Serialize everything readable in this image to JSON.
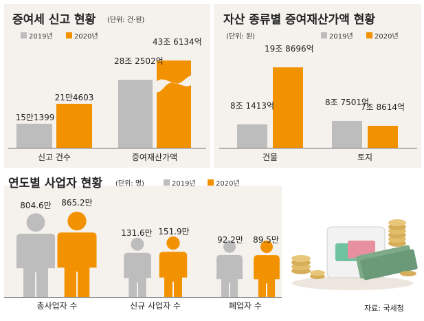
{
  "panel1": {
    "title": "증여세 신고 현황",
    "unit": "(단위: 건·원)",
    "legend": [
      "2019년",
      "2020년"
    ]
  },
  "panel2": {
    "title": "자산 종류별 증여재산가액 현황",
    "unit": "(단위: 원)",
    "legend": [
      "2019년",
      "2020년"
    ]
  },
  "panel3": {
    "title": "연도별 사업자 현황",
    "unit": "(단위: 명)",
    "legend": [
      "2019년",
      "2020년"
    ]
  },
  "source": "자료: 국세청",
  "colors": {
    "y2019": "#bdbdbd",
    "y2020": "#f39200"
  },
  "chart_data": [
    {
      "type": "bar",
      "title": "증여세 신고 현황",
      "categories": [
        "신고 건수",
        "증여재산가액"
      ],
      "series": [
        {
          "name": "2019년",
          "values": [
            151399,
            28250200000000
          ],
          "labels": [
            "15만1399",
            "28조 2502억"
          ]
        },
        {
          "name": "2020년",
          "values": [
            214603,
            43613400000000
          ],
          "labels": [
            "21만4603",
            "43조 6134억"
          ]
        }
      ],
      "axis_break": "증여재산가액 2020년"
    },
    {
      "type": "bar",
      "title": "자산 종류별 증여재산가액 현황",
      "categories": [
        "건물",
        "토지"
      ],
      "series": [
        {
          "name": "2019년",
          "values": [
            81413,
            87501
          ],
          "labels": [
            "8조 1413억",
            "8조 7501억"
          ]
        },
        {
          "name": "2020년",
          "values": [
            198696,
            78614
          ],
          "labels": [
            "19조 8696억",
            "7조 8614억"
          ]
        }
      ]
    },
    {
      "type": "bar",
      "title": "연도별 사업자 현황",
      "categories": [
        "총사업자 수",
        "신규 사업자 수",
        "폐업자 수"
      ],
      "series": [
        {
          "name": "2019년",
          "values": [
            8046000,
            1316000,
            922000
          ],
          "labels": [
            "804.6만",
            "131.6만",
            "92.2만"
          ]
        },
        {
          "name": "2020년",
          "values": [
            8652000,
            1519000,
            895000
          ],
          "labels": [
            "865.2만",
            "151.9만",
            "89.5만"
          ]
        }
      ]
    }
  ]
}
